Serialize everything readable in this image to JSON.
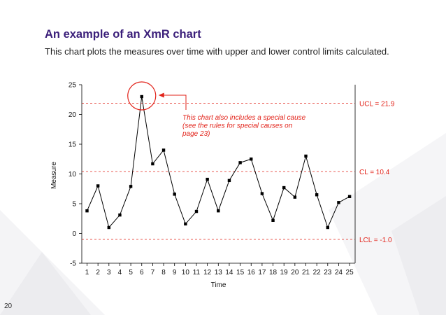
{
  "header": {
    "title": "An example of an XmR chart",
    "subtitle": "This chart plots the measures over time with upper and lower control limits calculated."
  },
  "page_number": "20",
  "colors": {
    "title": "#3b1f7a",
    "limits": "#e2231a",
    "data_line": "#000000"
  },
  "chart_data": {
    "type": "line",
    "title": "",
    "xlabel": "Time",
    "ylabel": "Measure",
    "x": [
      1,
      2,
      3,
      4,
      5,
      6,
      7,
      8,
      9,
      10,
      11,
      12,
      13,
      14,
      15,
      16,
      17,
      18,
      19,
      20,
      21,
      22,
      23,
      24,
      25
    ],
    "series": [
      {
        "values": [
          3.8,
          8,
          1,
          3.1,
          7.9,
          23,
          11.7,
          14,
          6.6,
          1.6,
          3.7,
          9.1,
          3.8,
          8.9,
          11.9,
          12.5,
          6.7,
          2.2,
          7.7,
          6.1,
          13,
          6.5,
          1,
          5.2,
          6.2
        ]
      }
    ],
    "ylim": [
      -5,
      25
    ],
    "yticks": [
      -5,
      0,
      5,
      10,
      15,
      20,
      25
    ],
    "grid": false,
    "control_limits": [
      {
        "label": "UCL = 21.9",
        "value": 21.9
      },
      {
        "label": "CL = 10.4",
        "value": 10.4
      },
      {
        "label": "LCL = -1.0",
        "value": -1.0
      }
    ],
    "annotation": {
      "lines": [
        "This chart also includes a special cause",
        "(see the rules for special causes on",
        "page 23)"
      ],
      "target_x": 6
    }
  }
}
